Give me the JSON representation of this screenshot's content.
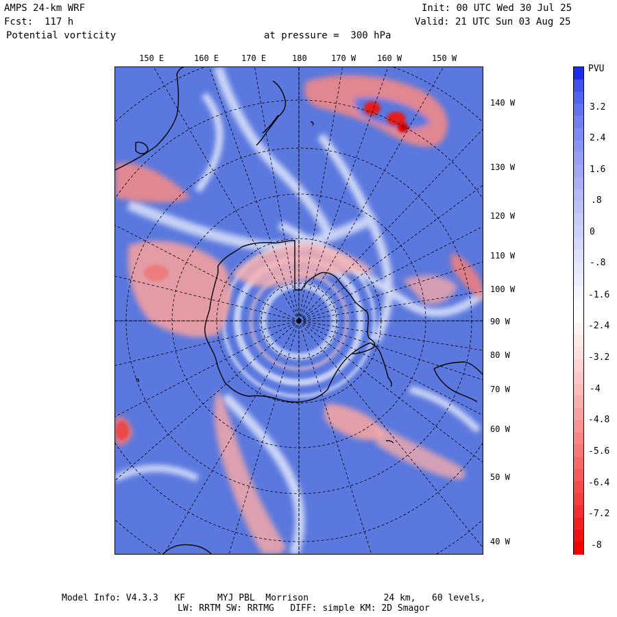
{
  "header": {
    "model": "AMPS 24-km WRF",
    "forecast": "Fcst:  117 h",
    "field": "Potential vorticity",
    "level": "at pressure =  300 hPa",
    "init": "Init: 00 UTC Wed 30 Jul 25",
    "valid": "Valid: 21 UTC Sun 03 Aug 25"
  },
  "map": {
    "projection": "polar stereographic, south pole",
    "top_lon_labels": [
      "150 E",
      "160 E",
      "170 E",
      "180",
      "170 W",
      "160 W",
      "150 W"
    ],
    "right_lon_labels": [
      "140 W",
      "130 W",
      "120 W",
      "110 W",
      "100 W",
      "90 W",
      "80 W",
      "70 W",
      "60 W",
      "50 W",
      "40 W"
    ],
    "ocean_color": "#5a78de",
    "positive_pv_color": "#e83a3a",
    "negative_pv_color": "#5a78de"
  },
  "colorbar": {
    "unit": "PVU",
    "tick_labels": [
      "3.2",
      "2.4",
      "1.6",
      ".8",
      "0",
      "-.8",
      "-1.6",
      "-2.4",
      "-3.2",
      "-4",
      "-4.8",
      "-5.6",
      "-6.4",
      "-7.2",
      "-8"
    ],
    "levels": [
      4.0,
      -8.0
    ],
    "top_color": "#1a2ee8",
    "mid_color": "#ffffff",
    "bottom_color": "#f00000"
  },
  "footer": {
    "line1": "Model Info: V4.3.3   KF      MYJ PBL  Morrison              24 km,   60 levels,",
    "line2": "LW: RRTM SW: RRTMG   DIFF: simple KM: 2D Smagor"
  }
}
